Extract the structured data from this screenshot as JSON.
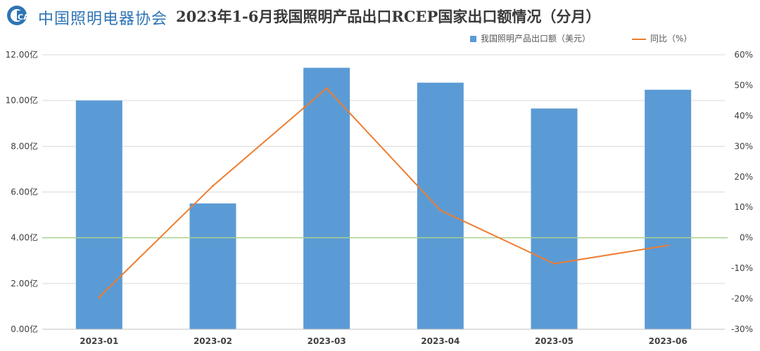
{
  "header": {
    "logo_text": "中国照明电器协会",
    "logo_badge": "CALI",
    "title": "2023年1-6月我国照明产品出口RCEP国家出口额情况（分月）"
  },
  "colors": {
    "bar": "#5b9bd5",
    "line": "#ed7d31",
    "zero_line": "#a9d18e",
    "grid": "#d9d9d9",
    "axis_text": "#404040"
  },
  "chart_data": {
    "type": "bar",
    "categories": [
      "2023-01",
      "2023-02",
      "2023-03",
      "2023-04",
      "2023-05",
      "2023-06"
    ],
    "series": [
      {
        "name": "我国照明产品出口额（美元）",
        "type": "bar",
        "axis": "left",
        "values": [
          10.0,
          5.5,
          11.43,
          10.78,
          9.65,
          10.47
        ]
      },
      {
        "name": "同比（%）",
        "type": "line",
        "axis": "right",
        "values": [
          -19.5,
          17,
          49,
          9,
          -8.5,
          -2.5
        ]
      }
    ],
    "y_left": {
      "ylim": [
        0,
        12
      ],
      "ticks": [
        0,
        2,
        4,
        6,
        8,
        10,
        12
      ],
      "tick_labels": [
        "0.00亿",
        "2.00亿",
        "4.00亿",
        "6.00亿",
        "8.00亿",
        "10.00亿",
        "12.00亿"
      ]
    },
    "y_right": {
      "ylim": [
        -30,
        60
      ],
      "ticks": [
        -30,
        -20,
        -10,
        0,
        10,
        20,
        30,
        40,
        50,
        60
      ],
      "tick_labels": [
        "-30%",
        "-20%",
        "-10%",
        "0%",
        "10%",
        "20%",
        "30%",
        "40%",
        "50%",
        "60%"
      ]
    },
    "grid": true,
    "legend_position": "top-right"
  }
}
